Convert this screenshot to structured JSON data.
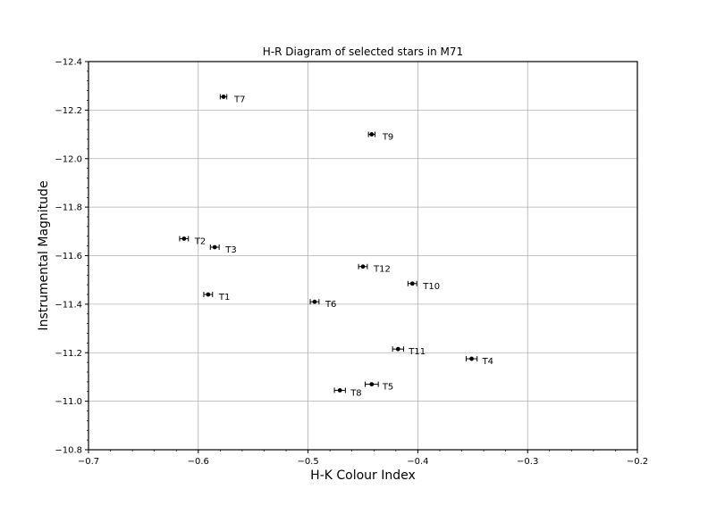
{
  "chart_data": {
    "type": "scatter",
    "title": "H-R Diagram of selected stars in M71",
    "xlabel": "H-K Colour Index",
    "ylabel": "Instrumental Magnitude",
    "xlim": [
      -0.7,
      -0.2
    ],
    "ylim": [
      -10.8,
      -12.4
    ],
    "y_inverted": true,
    "grid": true,
    "x_ticks": [
      -0.7,
      -0.6,
      -0.5,
      -0.4,
      -0.3,
      -0.2
    ],
    "x_tick_labels": [
      "−0.7",
      "−0.6",
      "−0.5",
      "−0.4",
      "−0.3",
      "−0.2"
    ],
    "y_ticks": [
      -12.4,
      -12.2,
      -12.0,
      -11.8,
      -11.6,
      -11.4,
      -11.2,
      -11.0,
      -10.8
    ],
    "y_tick_labels": [
      "−12.4",
      "−12.2",
      "−12.0",
      "−11.8",
      "−11.6",
      "−11.4",
      "−11.2",
      "−11.0",
      "−10.8"
    ],
    "points": [
      {
        "label": "T1",
        "x": -0.591,
        "y": -11.44,
        "xerr": 0.004
      },
      {
        "label": "T2",
        "x": -0.613,
        "y": -11.67,
        "xerr": 0.004
      },
      {
        "label": "T3",
        "x": -0.585,
        "y": -11.635,
        "xerr": 0.004
      },
      {
        "label": "T4",
        "x": -0.351,
        "y": -11.175,
        "xerr": 0.005
      },
      {
        "label": "T5",
        "x": -0.442,
        "y": -11.07,
        "xerr": 0.006
      },
      {
        "label": "T6",
        "x": -0.494,
        "y": -11.41,
        "xerr": 0.004
      },
      {
        "label": "T7",
        "x": -0.577,
        "y": -12.255,
        "xerr": 0.003
      },
      {
        "label": "T8",
        "x": -0.471,
        "y": -11.045,
        "xerr": 0.005
      },
      {
        "label": "T9",
        "x": -0.442,
        "y": -12.1,
        "xerr": 0.003
      },
      {
        "label": "T10",
        "x": -0.405,
        "y": -11.485,
        "xerr": 0.004
      },
      {
        "label": "T11",
        "x": -0.418,
        "y": -11.215,
        "xerr": 0.005
      },
      {
        "label": "T12",
        "x": -0.45,
        "y": -11.555,
        "xerr": 0.004
      }
    ]
  }
}
